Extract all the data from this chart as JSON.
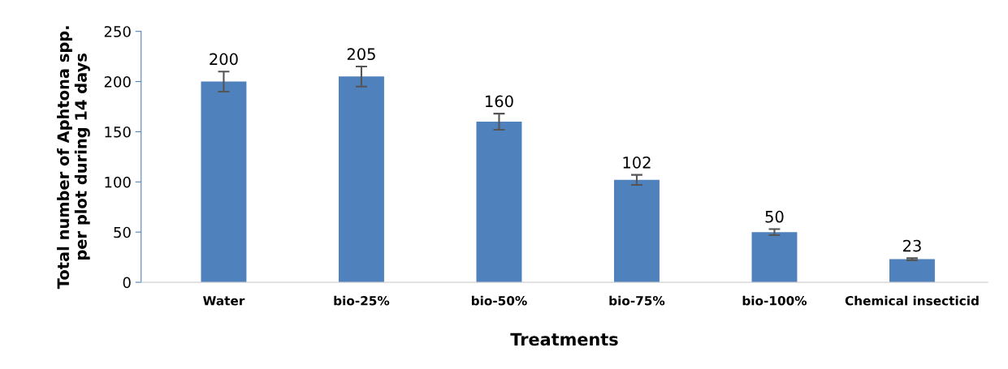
{
  "chart_data": {
    "type": "bar",
    "xlabel": "Treatments",
    "ylabel": "Total number of Aphtona spp.\nper plot during 14 days",
    "categories": [
      "Water",
      "bio-25%",
      "bio-50%",
      "bio-75%",
      "bio-100%",
      "Chemical insecticid"
    ],
    "values": [
      200,
      205,
      160,
      102,
      50,
      23
    ],
    "errors": [
      10,
      10,
      8,
      5,
      3,
      1
    ],
    "color": "#4f81bd",
    "ylim": [
      0,
      250
    ],
    "yticks": [
      0,
      50,
      100,
      150,
      200,
      250
    ],
    "data_labels": true,
    "grid": false,
    "legend": false
  }
}
